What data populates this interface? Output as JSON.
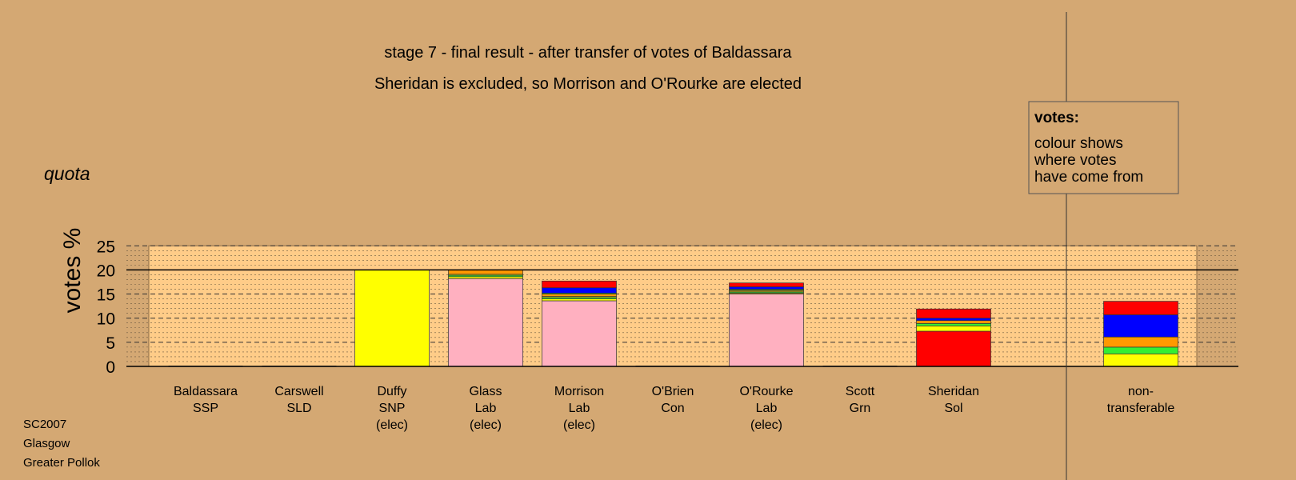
{
  "chart_data": {
    "type": "bar",
    "stacked": true,
    "title": "stage 7 - final result - after transfer of votes of Baldassara",
    "subtitle": "Sheridan is excluded, so Morrison and O'Rourke are elected",
    "ylabel": "votes %",
    "quota_label": "quota",
    "quota": 20,
    "ylim": [
      0,
      25
    ],
    "yticks": [
      0,
      5,
      10,
      15,
      20,
      25
    ],
    "grid": true,
    "categories": [
      {
        "lines": [
          "Baldassara",
          "SSP"
        ]
      },
      {
        "lines": [
          "Carswell",
          "SLD"
        ]
      },
      {
        "lines": [
          "Duffy",
          "SNP",
          "(elec)"
        ]
      },
      {
        "lines": [
          "Glass",
          "Lab",
          "(elec)"
        ]
      },
      {
        "lines": [
          "Morrison",
          "Lab",
          "(elec)"
        ]
      },
      {
        "lines": [
          "O'Brien",
          "Con"
        ]
      },
      {
        "lines": [
          "O'Rourke",
          "Lab",
          "(elec)"
        ]
      },
      {
        "lines": [
          "Scott",
          "Grn"
        ]
      },
      {
        "lines": [
          "Sheridan",
          "Sol"
        ]
      },
      {
        "lines": [
          "non-",
          "transferable"
        ]
      }
    ],
    "colors": {
      "SNP": "#ffff00",
      "SLD": "#33ee33",
      "Con": "#ff9900",
      "Grn": "#33ee33",
      "Lab": "#ffb0c0",
      "SSP": "#0000ff",
      "Sol": "#ff0000"
    },
    "stacks": [
      [],
      [],
      [
        {
          "party": "SNP",
          "value": 20.0
        }
      ],
      [
        {
          "party": "Lab",
          "value": 18.2
        },
        {
          "party": "SNP",
          "value": 0.4
        },
        {
          "party": "SLD",
          "value": 0.3
        },
        {
          "party": "SNP",
          "value": 0.2
        },
        {
          "party": "Con",
          "value": 0.9
        }
      ],
      [
        {
          "party": "Lab",
          "value": 13.6
        },
        {
          "party": "SNP",
          "value": 0.4
        },
        {
          "party": "SLD",
          "value": 0.3
        },
        {
          "party": "SNP",
          "value": 0.2
        },
        {
          "party": "Con",
          "value": 0.5
        },
        {
          "party": "Grn",
          "value": 0.2
        },
        {
          "party": "SSP",
          "value": 1.1
        },
        {
          "party": "Sol",
          "value": 1.4
        }
      ],
      [],
      [
        {
          "party": "Lab",
          "value": 15.0
        },
        {
          "party": "SNP",
          "value": 0.2
        },
        {
          "party": "SLD",
          "value": 0.2
        },
        {
          "party": "SNP",
          "value": 0.2
        },
        {
          "party": "Con",
          "value": 0.2
        },
        {
          "party": "Grn",
          "value": 0.2
        },
        {
          "party": "SSP",
          "value": 0.5
        },
        {
          "party": "Sol",
          "value": 0.8
        }
      ],
      [],
      [
        {
          "party": "Sol",
          "value": 7.3
        },
        {
          "party": "SNP",
          "value": 1.1
        },
        {
          "party": "SLD",
          "value": 0.5
        },
        {
          "party": "Con",
          "value": 0.6
        },
        {
          "party": "SSP",
          "value": 0.5
        },
        {
          "party": "Sol",
          "value": 1.9
        }
      ],
      [
        {
          "party": "SNP",
          "value": 2.6
        },
        {
          "party": "SLD",
          "value": 1.4
        },
        {
          "party": "Con",
          "value": 2.1
        },
        {
          "party": "SSP",
          "value": 4.6
        },
        {
          "party": "Sol",
          "value": 2.8
        }
      ]
    ],
    "legend": {
      "title": "votes:",
      "lines": [
        "colour shows",
        "where votes",
        "have come from"
      ],
      "placement": "top-right"
    }
  },
  "footer": {
    "election": "SC2007",
    "city": "Glasgow",
    "ward": "Greater Pollok"
  }
}
